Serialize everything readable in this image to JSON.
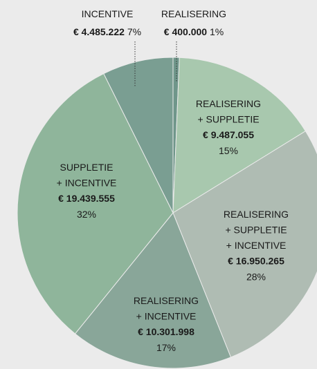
{
  "chart_data": {
    "type": "pie",
    "categories": [
      [
        "REALISERING"
      ],
      [
        "REALISERING",
        "+ SUPPLETIE"
      ],
      [
        "REALISERING",
        "+ SUPPLETIE",
        "+ INCENTIVE"
      ],
      [
        "REALISERING",
        "+ INCENTIVE"
      ],
      [
        "SUPPLETIE",
        "+ INCENTIVE"
      ],
      [
        "INCENTIVE"
      ]
    ],
    "values": [
      400000,
      9487055,
      16950265,
      10301998,
      19439555,
      4485222
    ],
    "value_labels": [
      "€ 400.000",
      "€ 9.487.055",
      "€ 16.950.265",
      "€ 10.301.998",
      "€ 19.439.555",
      "€ 4.485.222"
    ],
    "percents": [
      1,
      15,
      28,
      17,
      32,
      7
    ],
    "percent_labels": [
      "1%",
      "15%",
      "28%",
      "17%",
      "32%",
      "7%"
    ],
    "colors": [
      "#6f968a",
      "#a8c8ae",
      "#afbcb3",
      "#89a699",
      "#8fb59b",
      "#7a9e92"
    ]
  }
}
